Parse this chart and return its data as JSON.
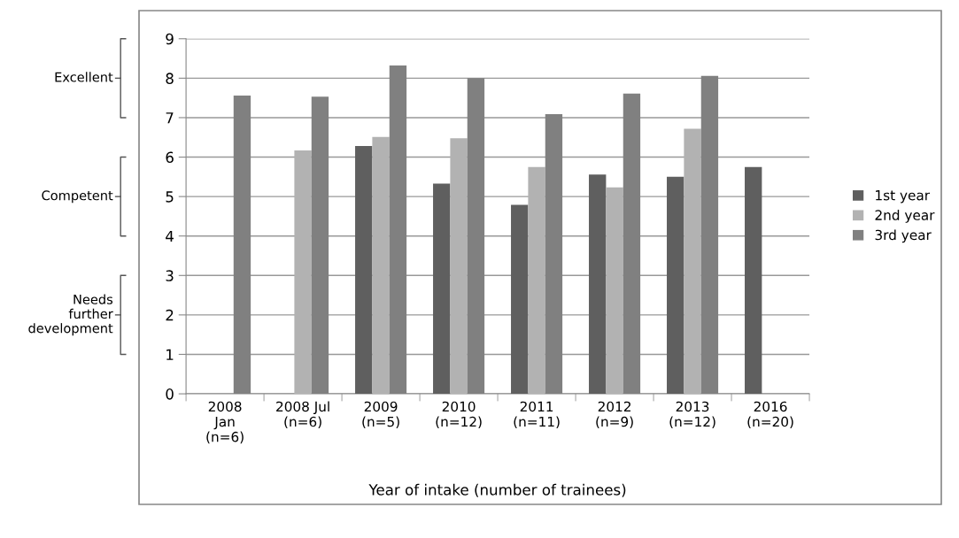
{
  "chart_data": {
    "type": "bar",
    "xlabel": "Year of intake (number of trainees)",
    "categories": [
      "2008\nJan\n(n=6)",
      "2008 Jul\n(n=6)",
      "2009\n(n=5)",
      "2010\n(n=12)",
      "2011\n(n=11)",
      "2012\n(n=9)",
      "2013\n(n=12)",
      "2016\n(n=20)"
    ],
    "series": [
      {
        "name": "1st year",
        "color": "#5f5f5f",
        "values": [
          null,
          null,
          6.28,
          5.33,
          4.79,
          5.56,
          5.5,
          5.75
        ]
      },
      {
        "name": "2nd year",
        "color": "#b2b2b2",
        "values": [
          null,
          6.17,
          6.51,
          6.48,
          5.75,
          5.23,
          6.72,
          null
        ]
      },
      {
        "name": "3rd year",
        "color": "#808080",
        "values": [
          7.56,
          7.53,
          8.32,
          8.0,
          7.09,
          7.61,
          8.06,
          null
        ]
      }
    ],
    "ylim": [
      0,
      9
    ],
    "yticks": [
      0,
      1,
      2,
      3,
      4,
      5,
      6,
      7,
      8,
      9
    ],
    "grid": "y",
    "legend": "right",
    "annotations": [
      "Excellent",
      "Competent",
      "Needs\nfurther\ndevelopment"
    ]
  }
}
